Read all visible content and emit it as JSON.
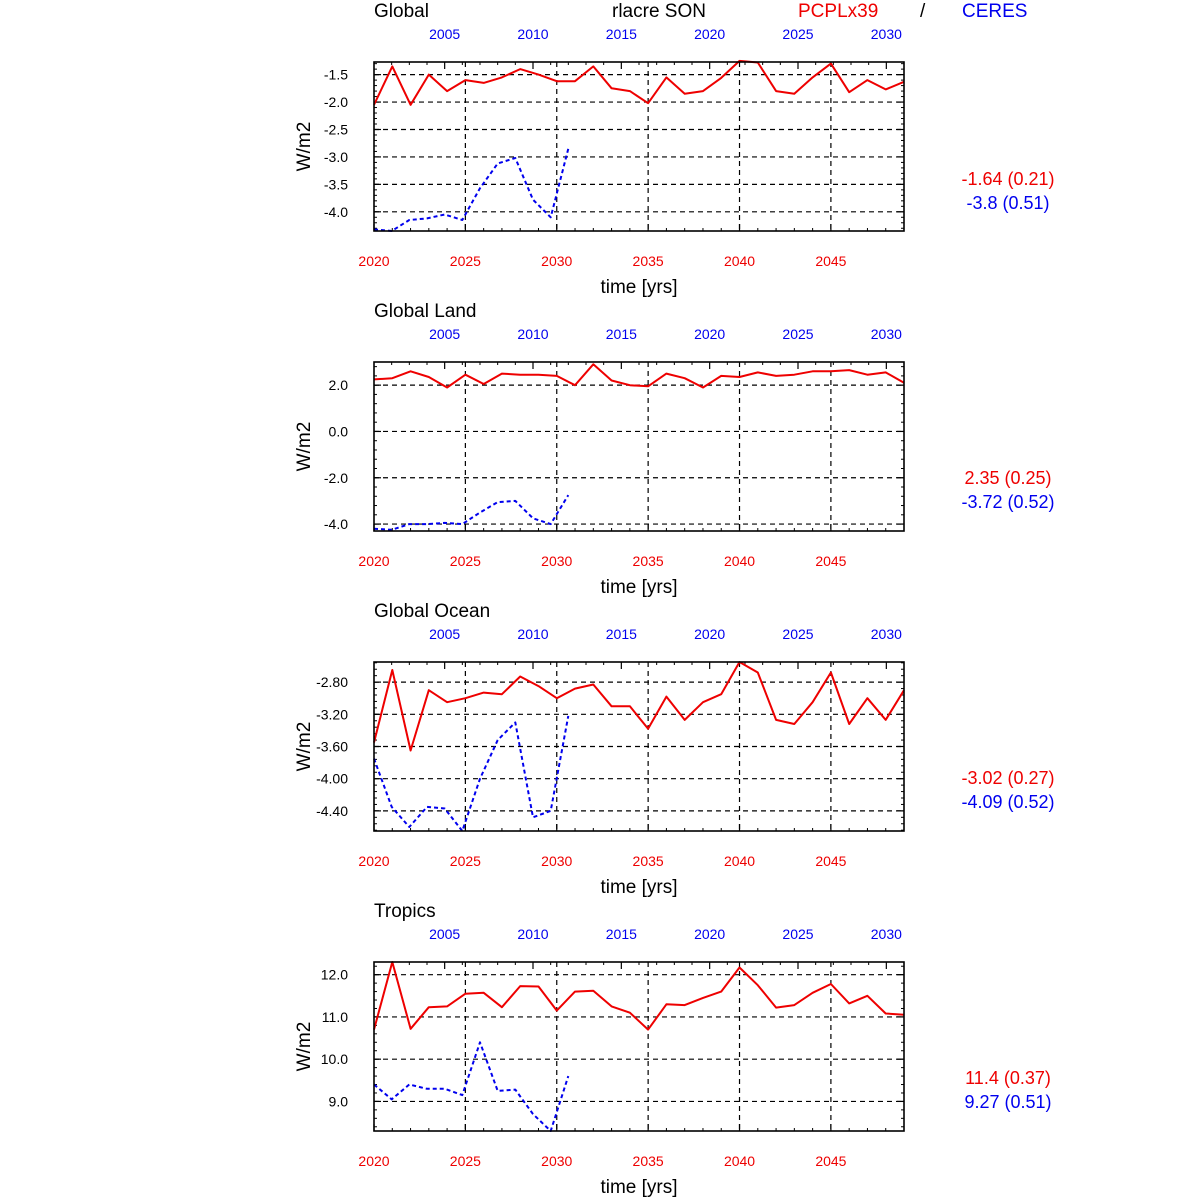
{
  "header": {
    "title": "rlacre SON",
    "model": "PCPLx39",
    "separator": "/",
    "obs": "CERES",
    "model_color": "#ee0000",
    "obs_color": "#0000ee"
  },
  "chart_data": [
    {
      "type": "line",
      "title": "Global",
      "xlabel": "time [yrs]",
      "ylabel": "W/m2",
      "x_bottom": {
        "range": [
          2020,
          2049
        ],
        "ticks": [
          2020,
          2025,
          2030,
          2035,
          2040,
          2045
        ],
        "color": "#ee0000"
      },
      "x_top": {
        "range": [
          2001,
          2031
        ],
        "ticks": [
          2005,
          2010,
          2015,
          2020,
          2025,
          2030
        ],
        "color": "#0000ee"
      },
      "ylim": [
        -4.35,
        -1.27
      ],
      "yticks": [
        "-1.5",
        "-2.0",
        "-2.5",
        "-3.0",
        "-3.5",
        "-4.0"
      ],
      "grid": true,
      "series": [
        {
          "name": "PCPLx39",
          "color": "#ee0000",
          "style": "solid",
          "axis": "bottom",
          "x": [
            2020,
            2021,
            2022,
            2023,
            2024,
            2025,
            2026,
            2027,
            2028,
            2029,
            2030,
            2031,
            2032,
            2033,
            2034,
            2035,
            2036,
            2037,
            2038,
            2039,
            2040,
            2041,
            2042,
            2043,
            2044,
            2045,
            2046,
            2047,
            2048,
            2049
          ],
          "values": [
            -2.05,
            -1.35,
            -2.05,
            -1.5,
            -1.8,
            -1.6,
            -1.65,
            -1.55,
            -1.4,
            -1.5,
            -1.62,
            -1.62,
            -1.35,
            -1.75,
            -1.8,
            -2.02,
            -1.55,
            -1.85,
            -1.8,
            -1.56,
            -1.25,
            -1.28,
            -1.8,
            -1.85,
            -1.55,
            -1.3,
            -1.82,
            -1.6,
            -1.77,
            -1.63
          ]
        },
        {
          "name": "CERES",
          "color": "#0000ee",
          "style": "dashed",
          "axis": "top",
          "x": [
            2001,
            2002,
            2003,
            2004,
            2005,
            2006,
            2007,
            2008,
            2009,
            2010,
            2011,
            2012
          ],
          "values": [
            -4.32,
            -4.35,
            -4.15,
            -4.12,
            -4.05,
            -4.15,
            -3.57,
            -3.12,
            -3.02,
            -3.78,
            -4.1,
            -2.85
          ]
        }
      ],
      "stats": {
        "model": "-1.64 (0.21)",
        "obs": "-3.8 (0.51)"
      }
    },
    {
      "type": "line",
      "title": "Global Land",
      "xlabel": "time [yrs]",
      "ylabel": "W/m2",
      "x_bottom": {
        "range": [
          2020,
          2049
        ],
        "ticks": [
          2020,
          2025,
          2030,
          2035,
          2040,
          2045
        ],
        "color": "#ee0000"
      },
      "x_top": {
        "range": [
          2001,
          2031
        ],
        "ticks": [
          2005,
          2010,
          2015,
          2020,
          2025,
          2030
        ],
        "color": "#0000ee"
      },
      "ylim": [
        -4.3,
        3.0
      ],
      "yticks": [
        "2.0",
        "0.0",
        "-2.0",
        "-4.0"
      ],
      "grid": true,
      "series": [
        {
          "name": "PCPLx39",
          "color": "#ee0000",
          "style": "solid",
          "axis": "bottom",
          "x": [
            2020,
            2021,
            2022,
            2023,
            2024,
            2025,
            2026,
            2027,
            2028,
            2029,
            2030,
            2031,
            2032,
            2033,
            2034,
            2035,
            2036,
            2037,
            2038,
            2039,
            2040,
            2041,
            2042,
            2043,
            2044,
            2045,
            2046,
            2047,
            2048,
            2049
          ],
          "values": [
            2.25,
            2.3,
            2.6,
            2.35,
            1.9,
            2.45,
            2.05,
            2.5,
            2.45,
            2.45,
            2.4,
            2.0,
            2.9,
            2.2,
            2.0,
            1.95,
            2.5,
            2.3,
            1.9,
            2.4,
            2.35,
            2.55,
            2.4,
            2.45,
            2.6,
            2.6,
            2.65,
            2.45,
            2.55,
            2.1
          ]
        },
        {
          "name": "CERES",
          "color": "#0000ee",
          "style": "dashed",
          "axis": "top",
          "x": [
            2001,
            2002,
            2003,
            2004,
            2005,
            2006,
            2007,
            2008,
            2009,
            2010,
            2011,
            2012
          ],
          "values": [
            -4.2,
            -4.25,
            -4.0,
            -4.0,
            -3.95,
            -4.0,
            -3.5,
            -3.05,
            -3.0,
            -3.75,
            -4.0,
            -2.75
          ]
        }
      ],
      "stats": {
        "model": "2.35 (0.25)",
        "obs": "-3.72 (0.52)"
      }
    },
    {
      "type": "line",
      "title": "Global Ocean",
      "xlabel": "time [yrs]",
      "ylabel": "W/m2",
      "x_bottom": {
        "range": [
          2020,
          2049
        ],
        "ticks": [
          2020,
          2025,
          2030,
          2035,
          2040,
          2045
        ],
        "color": "#ee0000"
      },
      "x_top": {
        "range": [
          2001,
          2031
        ],
        "ticks": [
          2005,
          2010,
          2015,
          2020,
          2025,
          2030
        ],
        "color": "#0000ee"
      },
      "ylim": [
        -4.65,
        -2.55
      ],
      "yticks": [
        "-2.80",
        "-3.20",
        "-3.60",
        "-4.00",
        "-4.40"
      ],
      "grid": true,
      "series": [
        {
          "name": "PCPLx39",
          "color": "#ee0000",
          "style": "solid",
          "axis": "bottom",
          "x": [
            2020,
            2021,
            2022,
            2023,
            2024,
            2025,
            2026,
            2027,
            2028,
            2029,
            2030,
            2031,
            2032,
            2033,
            2034,
            2035,
            2036,
            2037,
            2038,
            2039,
            2040,
            2041,
            2042,
            2043,
            2044,
            2045,
            2046,
            2047,
            2048,
            2049
          ],
          "values": [
            -3.55,
            -2.65,
            -3.65,
            -2.9,
            -3.05,
            -3.0,
            -2.93,
            -2.95,
            -2.73,
            -2.85,
            -3.0,
            -2.88,
            -2.83,
            -3.1,
            -3.1,
            -3.38,
            -2.98,
            -3.27,
            -3.05,
            -2.95,
            -2.55,
            -2.68,
            -3.27,
            -3.32,
            -3.05,
            -2.68,
            -3.32,
            -3.0,
            -3.27,
            -2.9
          ]
        },
        {
          "name": "CERES",
          "color": "#0000ee",
          "style": "dashed",
          "axis": "top",
          "x": [
            2001,
            2002,
            2003,
            2004,
            2005,
            2006,
            2007,
            2008,
            2009,
            2010,
            2011,
            2012
          ],
          "values": [
            -3.75,
            -4.35,
            -4.6,
            -4.35,
            -4.37,
            -4.65,
            -4.0,
            -3.52,
            -3.3,
            -4.48,
            -4.4,
            -3.22
          ]
        }
      ],
      "stats": {
        "model": "-3.02 (0.27)",
        "obs": "-4.09 (0.52)"
      }
    },
    {
      "type": "line",
      "title": "Tropics",
      "xlabel": "time [yrs]",
      "ylabel": "W/m2",
      "x_bottom": {
        "range": [
          2020,
          2049
        ],
        "ticks": [
          2020,
          2025,
          2030,
          2035,
          2040,
          2045
        ],
        "color": "#ee0000"
      },
      "x_top": {
        "range": [
          2001,
          2031
        ],
        "ticks": [
          2005,
          2010,
          2015,
          2020,
          2025,
          2030
        ],
        "color": "#0000ee"
      },
      "ylim": [
        8.3,
        12.3
      ],
      "yticks": [
        "12.0",
        "11.0",
        "10.0",
        "9.0"
      ],
      "grid": true,
      "series": [
        {
          "name": "PCPLx39",
          "color": "#ee0000",
          "style": "solid",
          "axis": "bottom",
          "x": [
            2020,
            2021,
            2022,
            2023,
            2024,
            2025,
            2026,
            2027,
            2028,
            2029,
            2030,
            2031,
            2032,
            2033,
            2034,
            2035,
            2036,
            2037,
            2038,
            2039,
            2040,
            2041,
            2042,
            2043,
            2044,
            2045,
            2046,
            2047,
            2048,
            2049
          ],
          "values": [
            10.7,
            12.3,
            10.72,
            11.23,
            11.25,
            11.55,
            11.57,
            11.23,
            11.73,
            11.72,
            11.15,
            11.6,
            11.62,
            11.25,
            11.1,
            10.7,
            11.3,
            11.28,
            11.45,
            11.6,
            12.17,
            11.75,
            11.22,
            11.28,
            11.57,
            11.78,
            11.32,
            11.5,
            11.08,
            11.05
          ]
        },
        {
          "name": "CERES",
          "color": "#0000ee",
          "style": "dashed",
          "axis": "top",
          "x": [
            2001,
            2002,
            2003,
            2004,
            2005,
            2006,
            2007,
            2008,
            2009,
            2010,
            2011,
            2012
          ],
          "values": [
            9.4,
            9.05,
            9.4,
            9.3,
            9.3,
            9.15,
            10.4,
            9.25,
            9.28,
            8.7,
            8.3,
            9.6
          ]
        }
      ],
      "stats": {
        "model": "11.4 (0.37)",
        "obs": "9.27 (0.51)"
      }
    }
  ]
}
